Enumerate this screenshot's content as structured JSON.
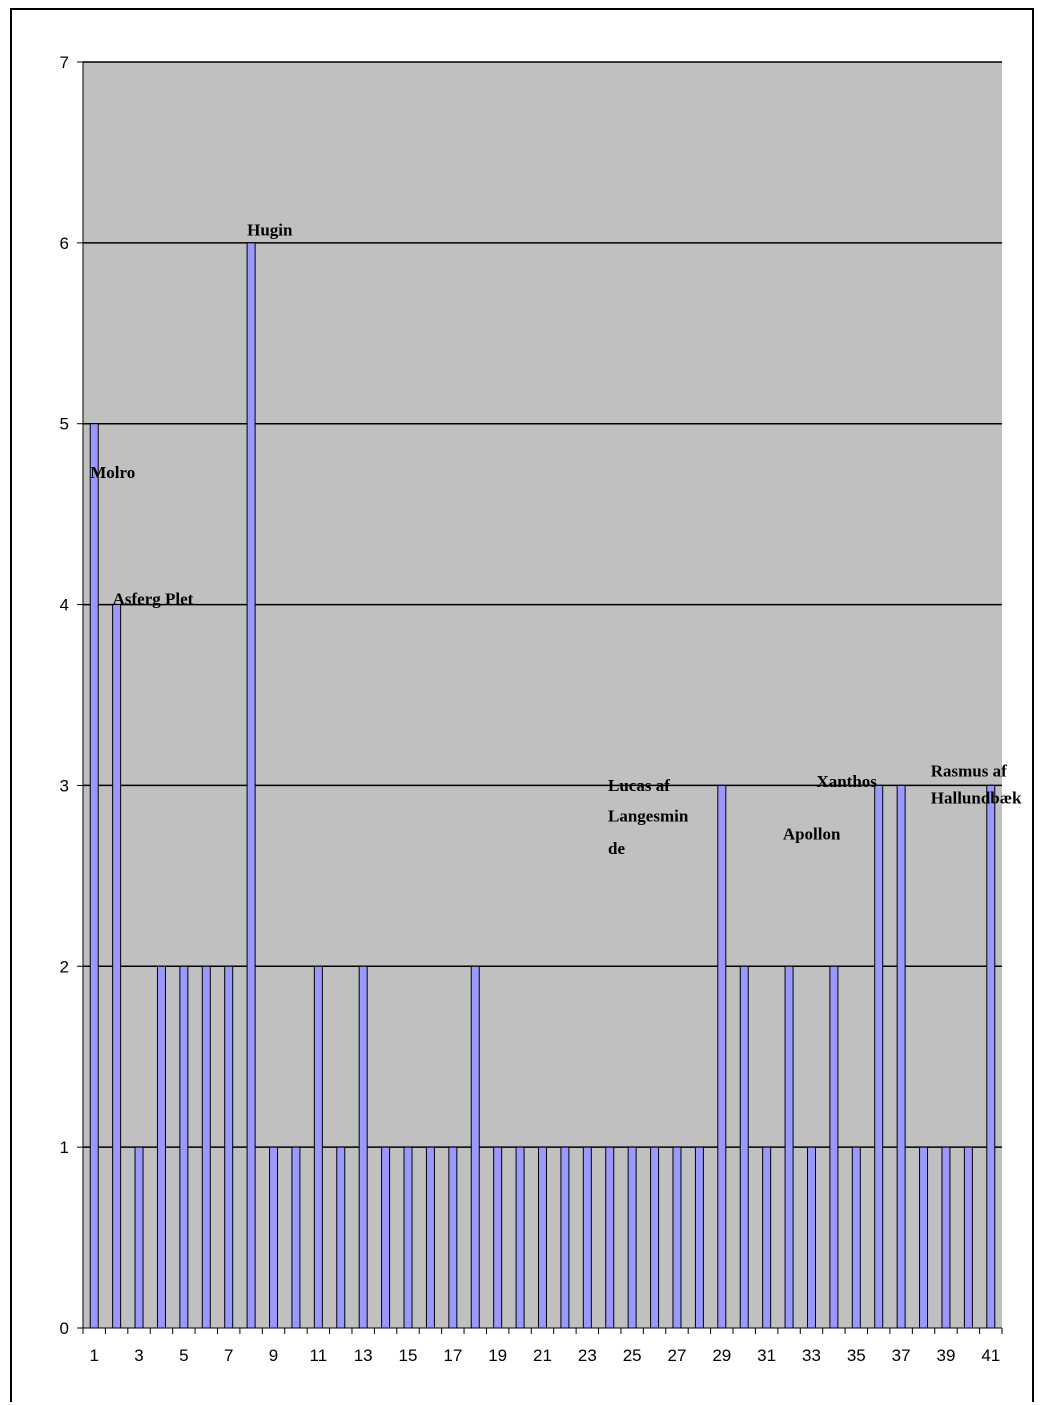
{
  "chart_data": {
    "type": "bar",
    "categories": [
      "1",
      "2",
      "3",
      "4",
      "5",
      "6",
      "7",
      "8",
      "9",
      "10",
      "11",
      "12",
      "13",
      "14",
      "15",
      "16",
      "17",
      "18",
      "19",
      "20",
      "21",
      "22",
      "23",
      "24",
      "25",
      "26",
      "27",
      "28",
      "29",
      "30",
      "31",
      "32",
      "33",
      "34",
      "35",
      "36",
      "37",
      "38",
      "39",
      "40",
      "41"
    ],
    "x_tick_labels": [
      "1",
      "3",
      "5",
      "7",
      "9",
      "11",
      "13",
      "15",
      "17",
      "19",
      "21",
      "23",
      "25",
      "27",
      "29",
      "31",
      "33",
      "35",
      "37",
      "39",
      "41"
    ],
    "y_tick_labels": [
      "0",
      "1",
      "2",
      "3",
      "4",
      "5",
      "6",
      "7"
    ],
    "values": [
      5,
      4,
      1,
      2,
      2,
      2,
      2,
      6,
      1,
      1,
      2,
      1,
      2,
      1,
      1,
      1,
      1,
      2,
      1,
      1,
      1,
      1,
      1,
      1,
      1,
      1,
      1,
      1,
      3,
      2,
      1,
      2,
      1,
      2,
      1,
      3,
      3,
      1,
      1,
      1,
      3
    ],
    "ylim": [
      0,
      7
    ],
    "grid": true,
    "bar_color": "#9999ff",
    "plot_background": "#c0c0c0",
    "annotations": [
      {
        "text": "Molro",
        "x": 1,
        "y": 4.7
      },
      {
        "text": "Asferg Plet",
        "x": 2,
        "y": 4.0
      },
      {
        "text": "Hugin",
        "x": 8,
        "y": 6.04
      },
      {
        "text": "Lucas af",
        "x": 24.1,
        "y": 2.97
      },
      {
        "text": "Langesmin",
        "x": 24.1,
        "y": 2.8
      },
      {
        "text": "de",
        "x": 24.1,
        "y": 2.62
      },
      {
        "text": "Apollon",
        "x": 31.9,
        "y": 2.7
      },
      {
        "text": "Xanthos",
        "x": 33.4,
        "y": 2.99
      },
      {
        "text": "Rasmus af",
        "x": 38.5,
        "y": 3.05
      },
      {
        "text": "Hallundbæk",
        "x": 38.5,
        "y": 2.9
      }
    ]
  }
}
